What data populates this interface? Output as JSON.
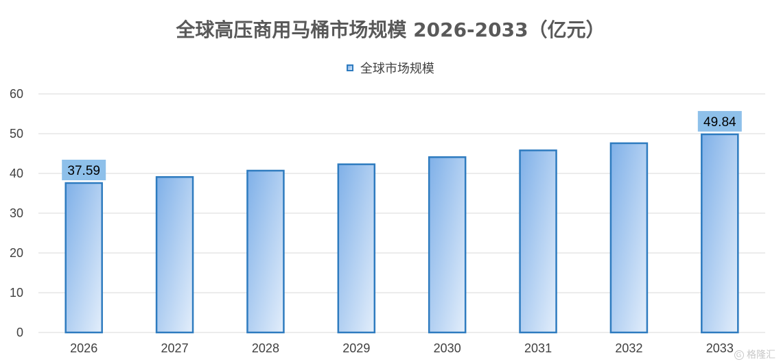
{
  "chart_data": {
    "type": "bar",
    "title": "全球高压商用马桶市场规模 2026-2033（亿元）",
    "categories": [
      "2026",
      "2027",
      "2028",
      "2029",
      "2030",
      "2031",
      "2032",
      "2033"
    ],
    "series": [
      {
        "name": "全球市场规模",
        "values": [
          37.59,
          39.1,
          40.7,
          42.3,
          44.1,
          45.8,
          47.6,
          49.84
        ]
      }
    ],
    "data_labels": [
      "37.59",
      "",
      "",
      "",
      "",
      "",
      "",
      "49.84"
    ],
    "ylim": [
      0,
      60
    ],
    "yticks": [
      0,
      10,
      20,
      30,
      40,
      50,
      60
    ],
    "grid": true,
    "legend_position": "top-center"
  },
  "colors": {
    "bar_fill_start": "#7fb0e8",
    "bar_fill_end": "#dceafa",
    "bar_stroke": "#2e7bbf",
    "label_box": "#8ec0ea",
    "grid": "#d9d9d9"
  },
  "watermark": {
    "icon": "logo-icon",
    "text": "格隆汇"
  }
}
